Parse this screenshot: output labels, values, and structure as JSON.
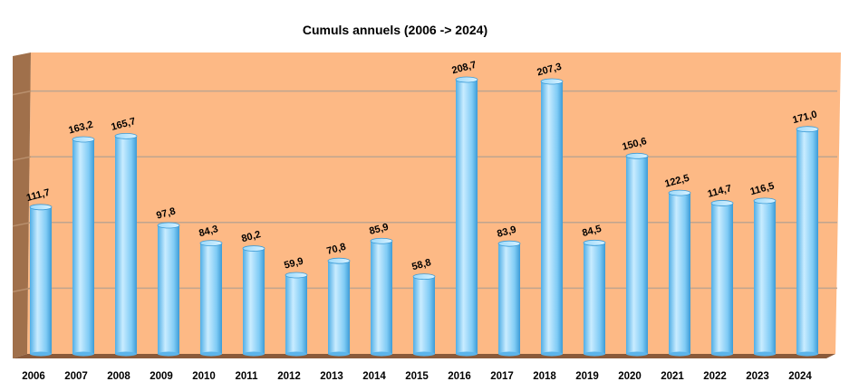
{
  "chart_data": {
    "type": "bar",
    "title": "Cumuls annuels (2006 -> 2024)",
    "xlabel": "",
    "ylabel": "",
    "ylim": [
      0,
      250
    ],
    "grid": true,
    "categories": [
      "2006",
      "2007",
      "2008",
      "2009",
      "2010",
      "2011",
      "2012",
      "2013",
      "2014",
      "2015",
      "2016",
      "2017",
      "2018",
      "2019",
      "2020",
      "2021",
      "2022",
      "2023",
      "2024"
    ],
    "values": [
      111.7,
      163.2,
      165.7,
      97.8,
      84.3,
      80.2,
      59.9,
      70.8,
      85.9,
      58.8,
      208.7,
      83.9,
      207.3,
      84.5,
      150.6,
      122.5,
      114.7,
      116.5,
      171.0
    ],
    "value_labels": [
      "111,7",
      "163,2",
      "165,7",
      "97,8",
      "84,3",
      "80,2",
      "59,9",
      "70,8",
      "85,9",
      "58,8",
      "208,7",
      "83,9",
      "207,3",
      "84,5",
      "150,6",
      "122,5",
      "114,7",
      "116,5",
      "171,0"
    ],
    "colors": {
      "plot_background": "#FDB985",
      "left_wall": "#A0704B",
      "floor": "#8A5A3A",
      "gridline": "#BFA58F",
      "bar_light": "#C9ECFF",
      "bar_mid": "#7FCBF5",
      "bar_dark": "#3C9BD6"
    }
  }
}
